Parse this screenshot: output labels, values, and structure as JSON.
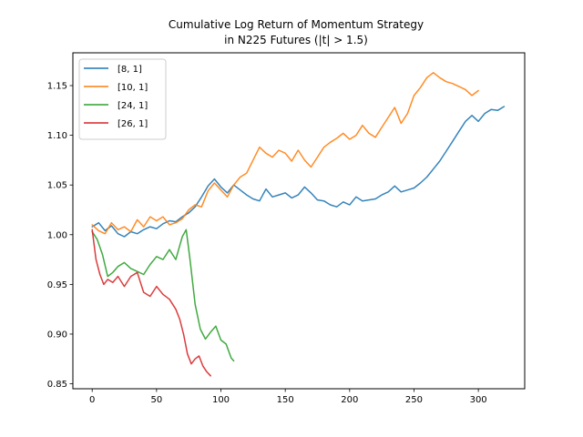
{
  "chart_data": {
    "type": "line",
    "title": "Cumulative Log Return of Momentum Strategy",
    "subtitle": "in N225 Futures (|t| > 1.5)",
    "xlabel": "",
    "ylabel": "",
    "xlim": [
      -15,
      336
    ],
    "ylim": [
      0.845,
      1.183
    ],
    "xticks": [
      0,
      50,
      100,
      150,
      200,
      250,
      300
    ],
    "yticks": [
      0.85,
      0.9,
      0.95,
      1.0,
      1.05,
      1.1,
      1.15
    ],
    "ytick_labels": [
      "0.85",
      "0.90",
      "0.95",
      "1.00",
      "1.05",
      "1.10",
      "1.15"
    ],
    "grid": false,
    "legend_position": "top-left",
    "series": [
      {
        "name": "[8, 1]",
        "color": "#1f77b4",
        "x": [
          0,
          5,
          10,
          15,
          20,
          25,
          30,
          35,
          40,
          45,
          50,
          55,
          60,
          65,
          70,
          75,
          80,
          85,
          90,
          95,
          100,
          105,
          110,
          115,
          120,
          125,
          130,
          135,
          140,
          145,
          150,
          155,
          160,
          165,
          170,
          175,
          180,
          185,
          190,
          195,
          200,
          205,
          210,
          215,
          220,
          225,
          230,
          235,
          240,
          245,
          250,
          255,
          260,
          265,
          270,
          275,
          280,
          285,
          290,
          295,
          300,
          305,
          310,
          315,
          320
        ],
        "values": [
          1.008,
          1.012,
          1.004,
          1.009,
          1.001,
          0.998,
          1.003,
          1.001,
          1.005,
          1.008,
          1.006,
          1.011,
          1.014,
          1.013,
          1.018,
          1.022,
          1.028,
          1.038,
          1.049,
          1.056,
          1.048,
          1.042,
          1.05,
          1.045,
          1.04,
          1.036,
          1.034,
          1.046,
          1.038,
          1.04,
          1.042,
          1.037,
          1.04,
          1.048,
          1.042,
          1.035,
          1.034,
          1.03,
          1.028,
          1.033,
          1.03,
          1.038,
          1.034,
          1.035,
          1.036,
          1.04,
          1.043,
          1.049,
          1.043,
          1.045,
          1.047,
          1.052,
          1.058,
          1.066,
          1.074,
          1.084,
          1.094,
          1.104,
          1.114,
          1.12,
          1.114,
          1.122,
          1.126,
          1.125,
          1.129
        ]
      },
      {
        "name": "[10, 1]",
        "color": "#ff7f0e",
        "x": [
          0,
          5,
          10,
          15,
          20,
          25,
          30,
          35,
          40,
          45,
          50,
          55,
          60,
          65,
          70,
          75,
          80,
          85,
          90,
          95,
          100,
          105,
          110,
          115,
          120,
          125,
          130,
          135,
          140,
          145,
          150,
          155,
          160,
          165,
          170,
          175,
          180,
          185,
          190,
          195,
          200,
          205,
          210,
          215,
          220,
          225,
          230,
          235,
          240,
          245,
          250,
          255,
          260,
          265,
          270,
          275,
          280,
          285,
          290,
          295,
          300
        ],
        "values": [
          1.01,
          1.004,
          1.001,
          1.012,
          1.005,
          1.008,
          1.003,
          1.015,
          1.008,
          1.018,
          1.014,
          1.018,
          1.01,
          1.012,
          1.016,
          1.025,
          1.03,
          1.028,
          1.044,
          1.052,
          1.045,
          1.038,
          1.05,
          1.058,
          1.062,
          1.075,
          1.088,
          1.082,
          1.078,
          1.085,
          1.082,
          1.074,
          1.085,
          1.075,
          1.068,
          1.078,
          1.088,
          1.093,
          1.097,
          1.102,
          1.096,
          1.1,
          1.11,
          1.102,
          1.098,
          1.108,
          1.118,
          1.128,
          1.112,
          1.122,
          1.14,
          1.148,
          1.158,
          1.163,
          1.158,
          1.154,
          1.152,
          1.149,
          1.146,
          1.14,
          1.145
        ]
      },
      {
        "name": "[24, 1]",
        "color": "#2ca02c",
        "x": [
          0,
          4,
          8,
          12,
          16,
          20,
          25,
          30,
          35,
          40,
          45,
          50,
          55,
          60,
          65,
          70,
          73,
          76,
          80,
          84,
          88,
          92,
          96,
          100,
          104,
          108,
          110
        ],
        "values": [
          1.003,
          0.995,
          0.98,
          0.958,
          0.962,
          0.968,
          0.972,
          0.966,
          0.963,
          0.96,
          0.97,
          0.978,
          0.975,
          0.985,
          0.975,
          0.998,
          1.005,
          0.975,
          0.93,
          0.905,
          0.895,
          0.902,
          0.908,
          0.894,
          0.89,
          0.876,
          0.873
        ]
      },
      {
        "name": "[26, 1]",
        "color": "#d62728",
        "x": [
          0,
          3,
          6,
          9,
          12,
          16,
          20,
          25,
          30,
          35,
          40,
          45,
          50,
          55,
          60,
          65,
          68,
          71,
          74,
          77,
          80,
          83,
          86,
          89,
          92
        ],
        "values": [
          1.005,
          0.975,
          0.96,
          0.95,
          0.955,
          0.952,
          0.958,
          0.948,
          0.958,
          0.962,
          0.942,
          0.938,
          0.948,
          0.94,
          0.935,
          0.925,
          0.915,
          0.9,
          0.88,
          0.87,
          0.875,
          0.878,
          0.868,
          0.862,
          0.858
        ]
      }
    ]
  }
}
